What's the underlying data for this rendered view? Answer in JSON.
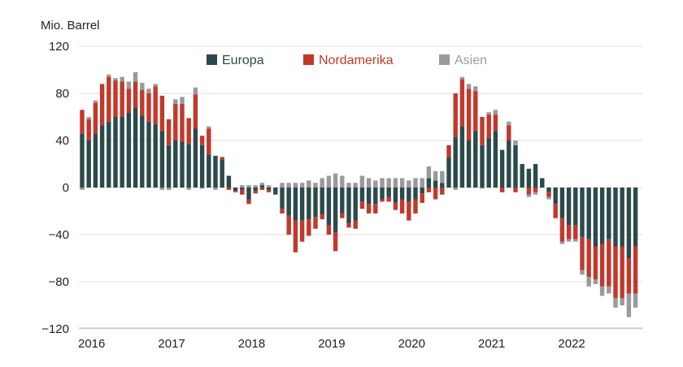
{
  "chart_data": {
    "type": "bar",
    "stacked": true,
    "ylabel": "Mio. Barrel",
    "ylim": [
      -120,
      120
    ],
    "yticks": [
      120,
      80,
      40,
      0,
      -40,
      -80,
      -120
    ],
    "x_start": "2016-01",
    "x_interval": "month",
    "xtick_labels": [
      "2016",
      "2017",
      "2018",
      "2019",
      "2020",
      "2021",
      "2022"
    ],
    "legend": "top-center",
    "grid": true,
    "series": [
      {
        "name": "Europa",
        "color": "#2b4a4c",
        "values": [
          46,
          40,
          46,
          53,
          56,
          60,
          60,
          64,
          68,
          61,
          56,
          54,
          48,
          36,
          40,
          39,
          37,
          50,
          36,
          28,
          27,
          24,
          10,
          -3,
          -2,
          -10,
          -3,
          2,
          -2,
          -6,
          -18,
          -24,
          -28,
          -28,
          -27,
          -25,
          -23,
          -32,
          -38,
          -22,
          -30,
          -28,
          -12,
          -14,
          -14,
          -10,
          -8,
          -13,
          -10,
          -12,
          -10,
          -5,
          8,
          6,
          4,
          26,
          43,
          52,
          40,
          48,
          36,
          42,
          48,
          32,
          40,
          36,
          20,
          16,
          20,
          8,
          -4,
          -14,
          -26,
          -32,
          -32,
          -42,
          -44,
          -50,
          -48,
          -44,
          -50,
          -50,
          -60,
          -50
        ]
      },
      {
        "name": "Nordamerika",
        "color": "#c0392b",
        "values": [
          20,
          18,
          26,
          35,
          38,
          31,
          30,
          20,
          22,
          22,
          24,
          32,
          30,
          22,
          31,
          32,
          22,
          29,
          8,
          22,
          0,
          2,
          -2,
          -1,
          -4,
          -4,
          -2,
          -2,
          -2,
          0,
          -4,
          -16,
          -27,
          -18,
          -14,
          -10,
          -4,
          -8,
          -16,
          -4,
          -4,
          -7,
          -6,
          -8,
          -8,
          -2,
          -4,
          -6,
          -12,
          -16,
          -12,
          -8,
          -4,
          -10,
          -6,
          10,
          37,
          40,
          44,
          34,
          24,
          20,
          14,
          -4,
          13,
          -4,
          0,
          -6,
          -4,
          0,
          -4,
          -12,
          -20,
          -12,
          -12,
          -28,
          -32,
          -28,
          -36,
          -40,
          -44,
          -44,
          -30,
          -40
        ]
      },
      {
        "name": "Asien",
        "color": "#9a9a9a",
        "values": [
          -2,
          2,
          2,
          0,
          2,
          2,
          4,
          6,
          8,
          6,
          4,
          2,
          -2,
          -2,
          4,
          6,
          -2,
          6,
          -1,
          2,
          -2,
          0,
          0,
          0,
          2,
          2,
          2,
          2,
          2,
          0,
          4,
          4,
          4,
          4,
          6,
          4,
          8,
          10,
          12,
          10,
          4,
          4,
          10,
          8,
          6,
          8,
          8,
          8,
          8,
          6,
          8,
          8,
          10,
          8,
          10,
          0,
          -2,
          2,
          4,
          4,
          -1,
          2,
          4,
          0,
          3,
          4,
          0,
          -2,
          -2,
          0,
          -2,
          0,
          -2,
          -2,
          -2,
          -4,
          -8,
          -4,
          -8,
          -6,
          -8,
          -6,
          -20,
          -12
        ]
      }
    ]
  }
}
